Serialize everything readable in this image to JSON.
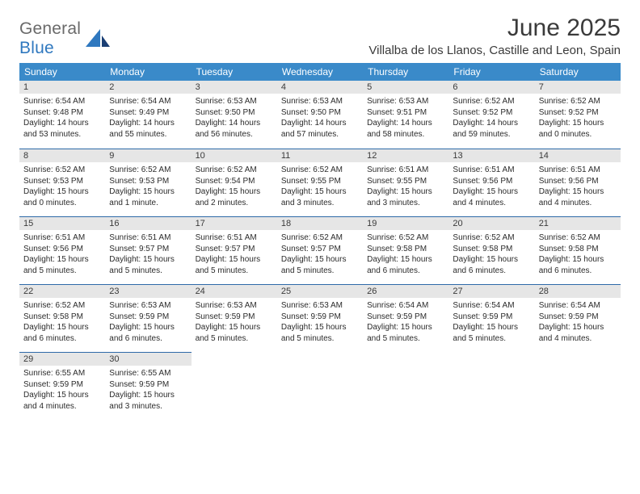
{
  "brand": {
    "general": "General",
    "blue": "Blue"
  },
  "title": "June 2025",
  "location": "Villalba de los Llanos, Castille and Leon, Spain",
  "colors": {
    "header_bg": "#3a8ac9",
    "header_text": "#ffffff",
    "daynum_bg": "#e6e6e6",
    "rule": "#2e6aa8",
    "brand_gray": "#6a6a6a",
    "brand_blue": "#2f78bf",
    "body_text": "#2b2b2b"
  },
  "weekdays": [
    "Sunday",
    "Monday",
    "Tuesday",
    "Wednesday",
    "Thursday",
    "Friday",
    "Saturday"
  ],
  "weeks": [
    [
      {
        "n": "1",
        "sr": "Sunrise: 6:54 AM",
        "ss": "Sunset: 9:48 PM",
        "d1": "Daylight: 14 hours",
        "d2": "and 53 minutes."
      },
      {
        "n": "2",
        "sr": "Sunrise: 6:54 AM",
        "ss": "Sunset: 9:49 PM",
        "d1": "Daylight: 14 hours",
        "d2": "and 55 minutes."
      },
      {
        "n": "3",
        "sr": "Sunrise: 6:53 AM",
        "ss": "Sunset: 9:50 PM",
        "d1": "Daylight: 14 hours",
        "d2": "and 56 minutes."
      },
      {
        "n": "4",
        "sr": "Sunrise: 6:53 AM",
        "ss": "Sunset: 9:50 PM",
        "d1": "Daylight: 14 hours",
        "d2": "and 57 minutes."
      },
      {
        "n": "5",
        "sr": "Sunrise: 6:53 AM",
        "ss": "Sunset: 9:51 PM",
        "d1": "Daylight: 14 hours",
        "d2": "and 58 minutes."
      },
      {
        "n": "6",
        "sr": "Sunrise: 6:52 AM",
        "ss": "Sunset: 9:52 PM",
        "d1": "Daylight: 14 hours",
        "d2": "and 59 minutes."
      },
      {
        "n": "7",
        "sr": "Sunrise: 6:52 AM",
        "ss": "Sunset: 9:52 PM",
        "d1": "Daylight: 15 hours",
        "d2": "and 0 minutes."
      }
    ],
    [
      {
        "n": "8",
        "sr": "Sunrise: 6:52 AM",
        "ss": "Sunset: 9:53 PM",
        "d1": "Daylight: 15 hours",
        "d2": "and 0 minutes."
      },
      {
        "n": "9",
        "sr": "Sunrise: 6:52 AM",
        "ss": "Sunset: 9:53 PM",
        "d1": "Daylight: 15 hours",
        "d2": "and 1 minute."
      },
      {
        "n": "10",
        "sr": "Sunrise: 6:52 AM",
        "ss": "Sunset: 9:54 PM",
        "d1": "Daylight: 15 hours",
        "d2": "and 2 minutes."
      },
      {
        "n": "11",
        "sr": "Sunrise: 6:52 AM",
        "ss": "Sunset: 9:55 PM",
        "d1": "Daylight: 15 hours",
        "d2": "and 3 minutes."
      },
      {
        "n": "12",
        "sr": "Sunrise: 6:51 AM",
        "ss": "Sunset: 9:55 PM",
        "d1": "Daylight: 15 hours",
        "d2": "and 3 minutes."
      },
      {
        "n": "13",
        "sr": "Sunrise: 6:51 AM",
        "ss": "Sunset: 9:56 PM",
        "d1": "Daylight: 15 hours",
        "d2": "and 4 minutes."
      },
      {
        "n": "14",
        "sr": "Sunrise: 6:51 AM",
        "ss": "Sunset: 9:56 PM",
        "d1": "Daylight: 15 hours",
        "d2": "and 4 minutes."
      }
    ],
    [
      {
        "n": "15",
        "sr": "Sunrise: 6:51 AM",
        "ss": "Sunset: 9:56 PM",
        "d1": "Daylight: 15 hours",
        "d2": "and 5 minutes."
      },
      {
        "n": "16",
        "sr": "Sunrise: 6:51 AM",
        "ss": "Sunset: 9:57 PM",
        "d1": "Daylight: 15 hours",
        "d2": "and 5 minutes."
      },
      {
        "n": "17",
        "sr": "Sunrise: 6:51 AM",
        "ss": "Sunset: 9:57 PM",
        "d1": "Daylight: 15 hours",
        "d2": "and 5 minutes."
      },
      {
        "n": "18",
        "sr": "Sunrise: 6:52 AM",
        "ss": "Sunset: 9:57 PM",
        "d1": "Daylight: 15 hours",
        "d2": "and 5 minutes."
      },
      {
        "n": "19",
        "sr": "Sunrise: 6:52 AM",
        "ss": "Sunset: 9:58 PM",
        "d1": "Daylight: 15 hours",
        "d2": "and 6 minutes."
      },
      {
        "n": "20",
        "sr": "Sunrise: 6:52 AM",
        "ss": "Sunset: 9:58 PM",
        "d1": "Daylight: 15 hours",
        "d2": "and 6 minutes."
      },
      {
        "n": "21",
        "sr": "Sunrise: 6:52 AM",
        "ss": "Sunset: 9:58 PM",
        "d1": "Daylight: 15 hours",
        "d2": "and 6 minutes."
      }
    ],
    [
      {
        "n": "22",
        "sr": "Sunrise: 6:52 AM",
        "ss": "Sunset: 9:58 PM",
        "d1": "Daylight: 15 hours",
        "d2": "and 6 minutes."
      },
      {
        "n": "23",
        "sr": "Sunrise: 6:53 AM",
        "ss": "Sunset: 9:59 PM",
        "d1": "Daylight: 15 hours",
        "d2": "and 6 minutes."
      },
      {
        "n": "24",
        "sr": "Sunrise: 6:53 AM",
        "ss": "Sunset: 9:59 PM",
        "d1": "Daylight: 15 hours",
        "d2": "and 5 minutes."
      },
      {
        "n": "25",
        "sr": "Sunrise: 6:53 AM",
        "ss": "Sunset: 9:59 PM",
        "d1": "Daylight: 15 hours",
        "d2": "and 5 minutes."
      },
      {
        "n": "26",
        "sr": "Sunrise: 6:54 AM",
        "ss": "Sunset: 9:59 PM",
        "d1": "Daylight: 15 hours",
        "d2": "and 5 minutes."
      },
      {
        "n": "27",
        "sr": "Sunrise: 6:54 AM",
        "ss": "Sunset: 9:59 PM",
        "d1": "Daylight: 15 hours",
        "d2": "and 5 minutes."
      },
      {
        "n": "28",
        "sr": "Sunrise: 6:54 AM",
        "ss": "Sunset: 9:59 PM",
        "d1": "Daylight: 15 hours",
        "d2": "and 4 minutes."
      }
    ],
    [
      {
        "n": "29",
        "sr": "Sunrise: 6:55 AM",
        "ss": "Sunset: 9:59 PM",
        "d1": "Daylight: 15 hours",
        "d2": "and 4 minutes."
      },
      {
        "n": "30",
        "sr": "Sunrise: 6:55 AM",
        "ss": "Sunset: 9:59 PM",
        "d1": "Daylight: 15 hours",
        "d2": "and 3 minutes."
      },
      null,
      null,
      null,
      null,
      null
    ]
  ]
}
